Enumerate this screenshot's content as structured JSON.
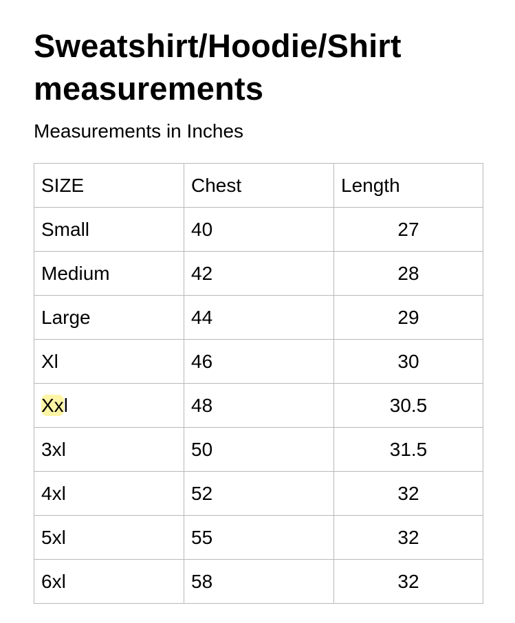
{
  "title": "Sweatshirt/Hoodie/Shirt measurements",
  "subtitle": "Measurements in Inches",
  "highlight_color": "#fdf5a6",
  "table": {
    "headers": [
      "SIZE",
      "Chest",
      "Length"
    ],
    "rows": [
      {
        "size": "Small",
        "chest": "40",
        "length": "27"
      },
      {
        "size": "Medium",
        "chest": "42",
        "length": "28"
      },
      {
        "size": "Large",
        "chest": "44",
        "length": "29"
      },
      {
        "size": "Xl",
        "chest": "46",
        "length": "30"
      },
      {
        "size_highlight": "Xx",
        "size_rest": "l",
        "chest": "48",
        "length": "30.5"
      },
      {
        "size": "3xl",
        "chest": "50",
        "length": "31.5"
      },
      {
        "size": "4xl",
        "chest": "52",
        "length": "32"
      },
      {
        "size": "5xl",
        "chest": "55",
        "length": "32"
      },
      {
        "size": "6xl",
        "chest": "58",
        "length": "32"
      }
    ]
  }
}
